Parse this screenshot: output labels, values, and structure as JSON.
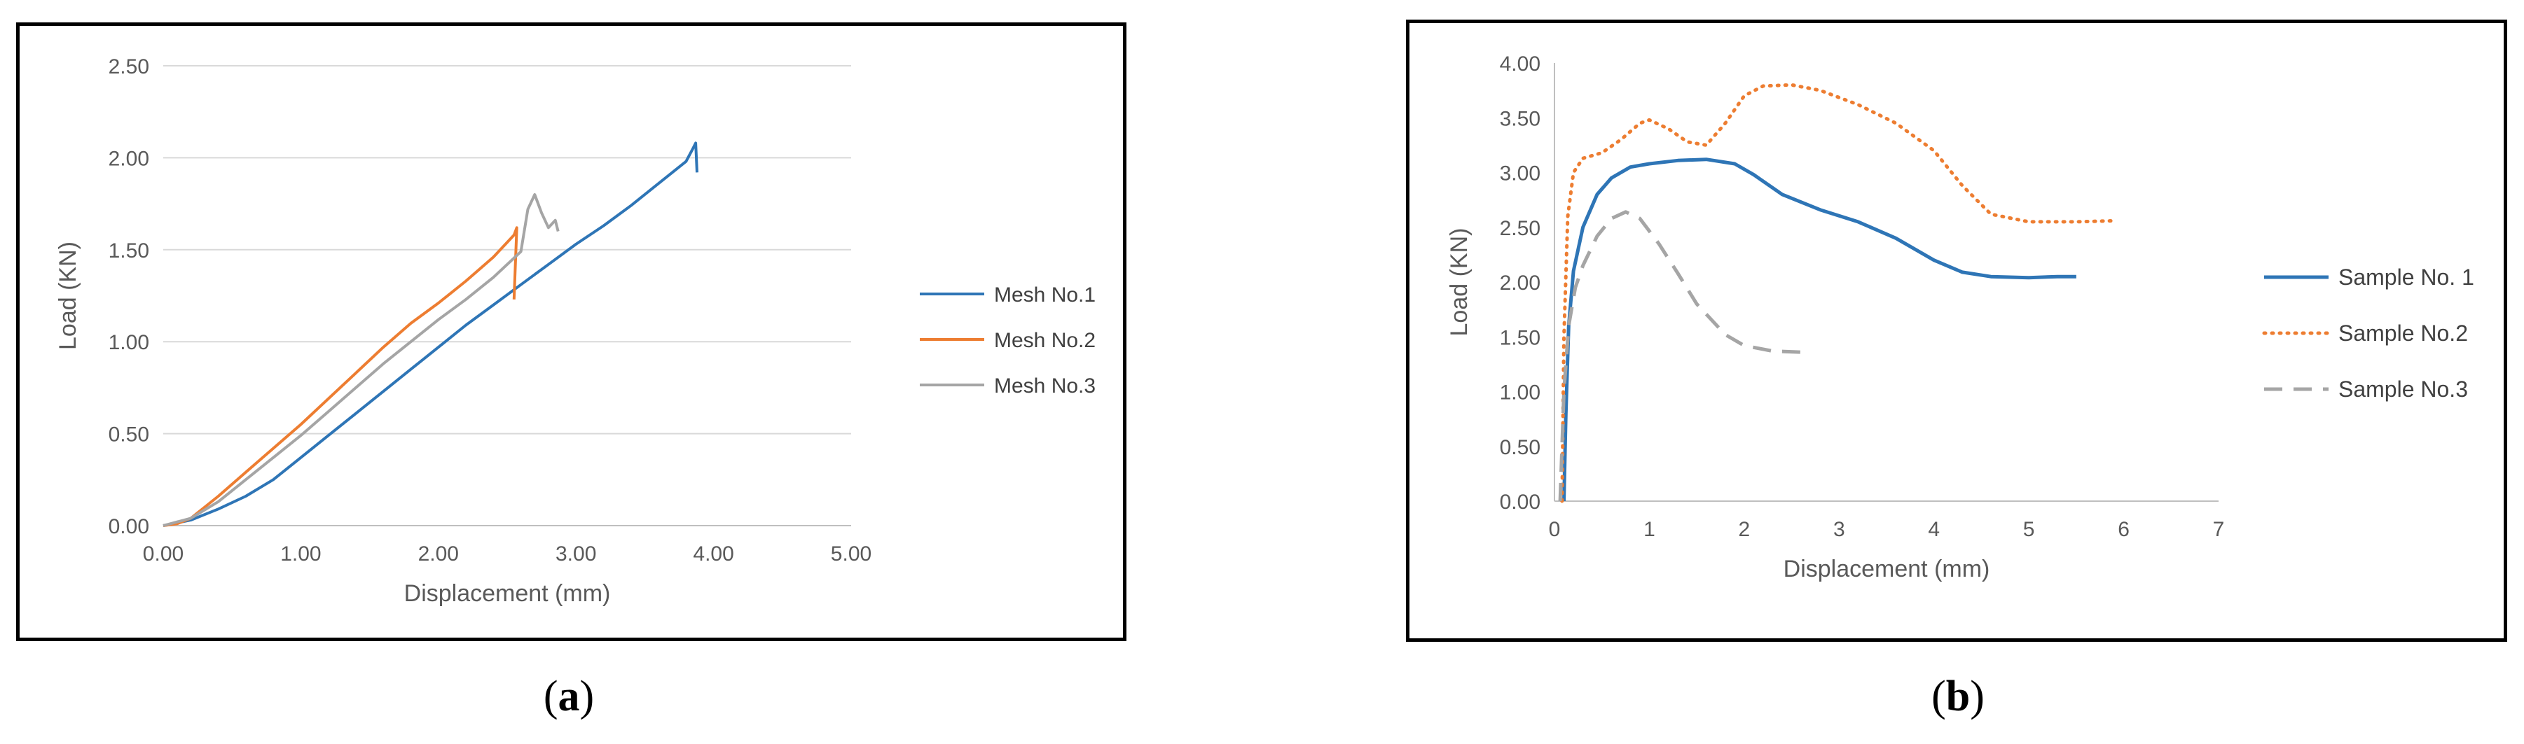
{
  "captions": {
    "a_label": "a",
    "b_label": "b"
  },
  "chart_data": [
    {
      "type": "line",
      "title": "",
      "xlabel": "Displacement (mm)",
      "ylabel": "Load (KN)",
      "xlim": [
        0,
        5
      ],
      "ylim": [
        0,
        2.5
      ],
      "xticks": [
        "0.00",
        "1.00",
        "2.00",
        "3.00",
        "4.00",
        "5.00"
      ],
      "yticks": [
        "0.00",
        "0.50",
        "1.00",
        "1.50",
        "2.00",
        "2.50"
      ],
      "grid": "horizontal",
      "legend": "right",
      "series": [
        {
          "name": "Mesh No.1",
          "color": "#2E75B6",
          "style": "solid",
          "x": [
            0,
            0.2,
            0.4,
            0.6,
            0.8,
            1.0,
            1.2,
            1.4,
            1.6,
            1.8,
            2.0,
            2.2,
            2.4,
            2.6,
            2.8,
            3.0,
            3.2,
            3.4,
            3.6,
            3.8,
            3.85,
            3.87,
            3.88
          ],
          "y": [
            0,
            0.03,
            0.09,
            0.16,
            0.25,
            0.37,
            0.49,
            0.61,
            0.73,
            0.85,
            0.97,
            1.09,
            1.2,
            1.31,
            1.42,
            1.53,
            1.63,
            1.74,
            1.86,
            1.98,
            2.05,
            2.08,
            1.92
          ]
        },
        {
          "name": "Mesh No.2",
          "color": "#ED7D31",
          "style": "solid",
          "x": [
            0,
            0.1,
            0.2,
            0.4,
            0.6,
            0.8,
            1.0,
            1.2,
            1.4,
            1.6,
            1.8,
            2.0,
            2.2,
            2.4,
            2.55,
            2.57,
            2.55
          ],
          "y": [
            0,
            0.01,
            0.04,
            0.16,
            0.29,
            0.42,
            0.55,
            0.69,
            0.83,
            0.97,
            1.1,
            1.21,
            1.33,
            1.46,
            1.58,
            1.62,
            1.23
          ]
        },
        {
          "name": "Mesh No.3",
          "color": "#A5A5A5",
          "style": "solid",
          "x": [
            0,
            0.2,
            0.4,
            0.6,
            0.8,
            1.0,
            1.2,
            1.4,
            1.6,
            1.8,
            2.0,
            2.2,
            2.4,
            2.6,
            2.65,
            2.7,
            2.75,
            2.8,
            2.85,
            2.87
          ],
          "y": [
            0,
            0.04,
            0.13,
            0.25,
            0.37,
            0.49,
            0.62,
            0.75,
            0.88,
            1.0,
            1.12,
            1.23,
            1.35,
            1.49,
            1.72,
            1.8,
            1.7,
            1.62,
            1.66,
            1.6
          ]
        }
      ]
    },
    {
      "type": "line",
      "title": "",
      "xlabel": "Displacement (mm)",
      "ylabel": "Load (KN)",
      "xlim": [
        0,
        7
      ],
      "ylim": [
        0,
        4
      ],
      "xticks": [
        "0",
        "1",
        "2",
        "3",
        "4",
        "5",
        "6",
        "7"
      ],
      "yticks": [
        "0.00",
        "0.50",
        "1.00",
        "1.50",
        "2.00",
        "2.50",
        "3.00",
        "3.50",
        "4.00"
      ],
      "grid": "none",
      "legend": "right",
      "series": [
        {
          "name": "Sample No. 1",
          "color": "#2E75B6",
          "style": "solid",
          "x": [
            0.1,
            0.12,
            0.15,
            0.2,
            0.3,
            0.45,
            0.6,
            0.8,
            1.0,
            1.3,
            1.6,
            1.9,
            2.1,
            2.4,
            2.8,
            3.2,
            3.6,
            4.0,
            4.3,
            4.6,
            5.0,
            5.3,
            5.5
          ],
          "y": [
            0,
            0.8,
            1.6,
            2.1,
            2.5,
            2.8,
            2.95,
            3.05,
            3.08,
            3.11,
            3.12,
            3.08,
            2.98,
            2.8,
            2.66,
            2.55,
            2.4,
            2.2,
            2.09,
            2.05,
            2.04,
            2.05,
            2.05
          ]
        },
        {
          "name": "Sample No.2",
          "color": "#ED7D31",
          "style": "dotted",
          "x": [
            0.08,
            0.1,
            0.14,
            0.2,
            0.3,
            0.5,
            0.7,
            0.9,
            1.0,
            1.2,
            1.4,
            1.6,
            1.8,
            2.0,
            2.2,
            2.5,
            2.8,
            3.2,
            3.6,
            4.0,
            4.3,
            4.6,
            5.0,
            5.5,
            5.9
          ],
          "y": [
            0,
            1.5,
            2.6,
            3.0,
            3.13,
            3.18,
            3.3,
            3.45,
            3.48,
            3.4,
            3.28,
            3.25,
            3.45,
            3.7,
            3.79,
            3.8,
            3.75,
            3.62,
            3.45,
            3.2,
            2.88,
            2.62,
            2.55,
            2.55,
            2.56
          ]
        },
        {
          "name": "Sample No.3",
          "color": "#A5A5A5",
          "style": "dashed",
          "x": [
            0.06,
            0.1,
            0.15,
            0.22,
            0.3,
            0.45,
            0.6,
            0.75,
            0.9,
            1.1,
            1.3,
            1.5,
            1.8,
            2.0,
            2.3,
            2.6
          ],
          "y": [
            0,
            1.0,
            1.6,
            1.95,
            2.15,
            2.42,
            2.58,
            2.64,
            2.58,
            2.35,
            2.08,
            1.8,
            1.52,
            1.42,
            1.37,
            1.36
          ]
        }
      ]
    }
  ]
}
